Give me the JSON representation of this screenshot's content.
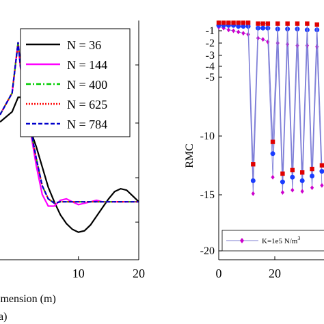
{
  "chart_data": [
    {
      "type": "line",
      "xlabel": "imension (m)",
      "ylabel": "",
      "xlim": [
        -3,
        20
      ],
      "ylim": [
        -0.4,
        1.25
      ],
      "x_ticks": [
        10,
        20
      ],
      "x_tick_labels": [
        "10",
        "20"
      ],
      "panel_label": "a)",
      "legend_position": "top-right",
      "series": [
        {
          "name": "N = 36",
          "color": "#000000",
          "dash": "solid",
          "x": [
            -3,
            -1,
            0,
            0.6,
            1.2,
            2,
            3,
            4,
            5,
            6,
            7,
            8,
            9,
            10,
            11,
            12,
            13,
            14,
            15,
            16,
            17,
            18,
            19,
            20
          ],
          "y": [
            0.55,
            0.62,
            0.72,
            0.72,
            0.58,
            0.5,
            0.38,
            0.24,
            0.1,
            0.0,
            -0.09,
            -0.15,
            -0.19,
            -0.21,
            -0.2,
            -0.16,
            -0.1,
            -0.04,
            0.02,
            0.07,
            0.09,
            0.08,
            0.04,
            0.0
          ]
        },
        {
          "name": "N = 144",
          "color": "#ff00ff",
          "dash": "solid",
          "x": [
            -3,
            -1,
            0,
            0.4,
            1,
            1.5,
            2,
            3,
            4,
            5,
            6,
            7,
            8,
            9,
            10,
            11,
            12,
            13,
            14,
            15,
            16,
            17,
            18,
            19,
            20
          ],
          "y": [
            0.6,
            0.75,
            1.1,
            0.92,
            0.8,
            0.6,
            0.5,
            0.25,
            0.05,
            -0.03,
            -0.03,
            0.01,
            0.02,
            0.0,
            -0.02,
            -0.01,
            0.0,
            0.01,
            0.0,
            0.0,
            0.0,
            0.0,
            0.0,
            0.0,
            0.0
          ]
        },
        {
          "name": "N = 400",
          "color": "#00cc00",
          "dash": "dashdot",
          "x": [
            -3,
            -1,
            0,
            0.4,
            1,
            1.5,
            2,
            3,
            4,
            5,
            6,
            7,
            8,
            9,
            10,
            11,
            12,
            13,
            14,
            15,
            16,
            17,
            18,
            19,
            20
          ],
          "y": [
            0.6,
            0.75,
            1.1,
            0.93,
            0.81,
            0.62,
            0.52,
            0.3,
            0.11,
            0.02,
            -0.01,
            0.0,
            0.0,
            0.0,
            0.0,
            0.0,
            0.0,
            0.0,
            0.0,
            0.0,
            0.0,
            0.0,
            0.0,
            0.0,
            0.0
          ]
        },
        {
          "name": "N = 625",
          "color": "#ff0000",
          "dash": "dotted",
          "x": [
            -3,
            -1,
            0,
            0.4,
            1,
            1.5,
            2,
            3,
            4,
            5,
            6,
            7,
            8,
            9,
            10,
            11,
            12,
            13,
            14,
            15,
            16,
            17,
            18,
            19,
            20
          ],
          "y": [
            0.6,
            0.75,
            1.1,
            0.93,
            0.81,
            0.62,
            0.52,
            0.3,
            0.11,
            0.02,
            -0.01,
            0.0,
            0.0,
            0.0,
            0.0,
            0.0,
            0.0,
            0.0,
            0.0,
            0.0,
            0.0,
            0.0,
            0.0,
            0.0,
            0.0
          ]
        },
        {
          "name": "N = 784",
          "color": "#0000cc",
          "dash": "dashed",
          "x": [
            -3,
            -1,
            0,
            0.4,
            1,
            1.5,
            2,
            3,
            4,
            5,
            6,
            7,
            8,
            9,
            10,
            11,
            12,
            13,
            14,
            15,
            16,
            17,
            18,
            19,
            20
          ],
          "y": [
            0.6,
            0.75,
            1.1,
            0.93,
            0.81,
            0.62,
            0.52,
            0.3,
            0.11,
            0.02,
            -0.01,
            0.0,
            0.0,
            0.0,
            0.0,
            0.0,
            0.0,
            0.0,
            0.0,
            0.0,
            0.0,
            0.0,
            0.0,
            0.0,
            0.0
          ]
        }
      ]
    },
    {
      "type": "line",
      "xlabel": "",
      "ylabel": "RMC",
      "xlim": [
        0,
        45
      ],
      "ylim": [
        -21,
        0
      ],
      "y_ticks": [
        -1,
        -2,
        -3,
        -4,
        -5,
        -10,
        -15,
        -20
      ],
      "y_tick_labels": [
        "-1",
        "-2",
        "-3",
        "-4",
        "-5",
        "-10",
        "-15",
        "-20"
      ],
      "x_ticks": [
        0,
        20
      ],
      "x_tick_labels": [
        "0",
        "20"
      ],
      "legend_position": "bottom",
      "legend_entries": [
        {
          "label": "K=1e5 N/m",
          "superscript": "3",
          "color": "#cc00cc",
          "marker": "diamond"
        }
      ],
      "series": [
        {
          "name": "",
          "color": "#e00000",
          "marker": "square",
          "x": [
            0,
            1,
            2,
            3,
            4,
            5,
            6,
            7,
            8,
            9,
            10,
            11,
            12,
            13,
            14,
            15,
            16,
            17,
            18,
            19,
            20,
            21,
            22,
            23,
            24,
            25,
            26,
            27,
            28,
            29,
            30,
            31,
            32,
            33,
            34,
            35,
            36,
            37,
            38,
            39,
            40,
            41,
            42,
            43,
            44
          ],
          "y": [
            -0.1,
            -0.1,
            -0.1,
            -0.1,
            -0.1,
            -0.1,
            -0.1,
            -12.4,
            -0.2,
            -0.2,
            -0.2,
            -10.5,
            -0.2,
            -13.2,
            -0.2,
            -12.9,
            -0.2,
            -13.1,
            -0.2,
            -12.8,
            -0.3,
            -12.5,
            -0.2,
            -13.0,
            -0.3,
            -12.5,
            -0.3,
            -12.8,
            -0.2,
            -13.0,
            -0.3,
            -12.6,
            -0.3,
            -12.9,
            -0.3,
            -12.7,
            -0.3,
            -12.9,
            -0.3,
            -12.7,
            -0.3,
            -12.4,
            -0.3,
            -13.0,
            -0.3
          ]
        },
        {
          "name": "",
          "color": "#1a3cff",
          "marker": "circle",
          "x": [
            0,
            1,
            2,
            3,
            4,
            5,
            6,
            7,
            8,
            9,
            10,
            11,
            12,
            13,
            14,
            15,
            16,
            17,
            18,
            19,
            20,
            21,
            22,
            23,
            24,
            25,
            26,
            27,
            28,
            29,
            30,
            31,
            32,
            33,
            34,
            35,
            36,
            37,
            38,
            39,
            40,
            41,
            42,
            43,
            44
          ],
          "y": [
            -0.4,
            -0.4,
            -0.4,
            -0.4,
            -0.5,
            -0.5,
            -0.5,
            -13.8,
            -0.7,
            -0.7,
            -0.7,
            -11.5,
            -0.8,
            -13.9,
            -0.8,
            -13.5,
            -0.8,
            -13.8,
            -0.9,
            -13.4,
            -0.9,
            -13.0,
            -0.9,
            -13.6,
            -1.0,
            -13.1,
            -1.0,
            -13.3,
            -1.0,
            -13.5,
            -1.0,
            -13.1,
            -1.1,
            -13.4,
            -1.1,
            -13.2,
            -1.1,
            -13.4,
            -1.1,
            -13.2,
            -1.1,
            -13.0,
            -1.1,
            -13.5,
            -1.1
          ]
        },
        {
          "name": "K=1e5 N/m",
          "color": "#cc00cc",
          "marker": "diamond",
          "x": [
            0,
            1,
            2,
            3,
            4,
            5,
            6,
            7,
            8,
            9,
            10,
            11,
            12,
            13,
            14,
            15,
            16,
            17,
            18,
            19,
            20,
            21,
            22,
            23,
            24,
            25,
            26,
            27,
            28,
            29,
            30,
            31,
            32,
            33,
            34,
            35,
            36,
            37,
            38,
            39,
            40,
            41,
            42,
            43,
            44
          ],
          "y": [
            -0.6,
            -0.7,
            -0.9,
            -1.0,
            -1.1,
            -1.2,
            -1.3,
            -14.9,
            -1.6,
            -1.7,
            -1.9,
            -13.5,
            -2.0,
            -14.8,
            -2.1,
            -14.6,
            -2.2,
            -14.7,
            -2.2,
            -14.4,
            -2.3,
            -14.2,
            -2.3,
            -14.6,
            -2.4,
            -14.3,
            -2.4,
            -14.5,
            -2.5,
            -14.6,
            -2.5,
            -14.3,
            -2.5,
            -14.5,
            -2.6,
            -14.4,
            -2.6,
            -14.5,
            -2.6,
            -14.4,
            -2.6,
            -14.2,
            -2.7,
            -14.6,
            -2.7
          ]
        }
      ]
    }
  ]
}
